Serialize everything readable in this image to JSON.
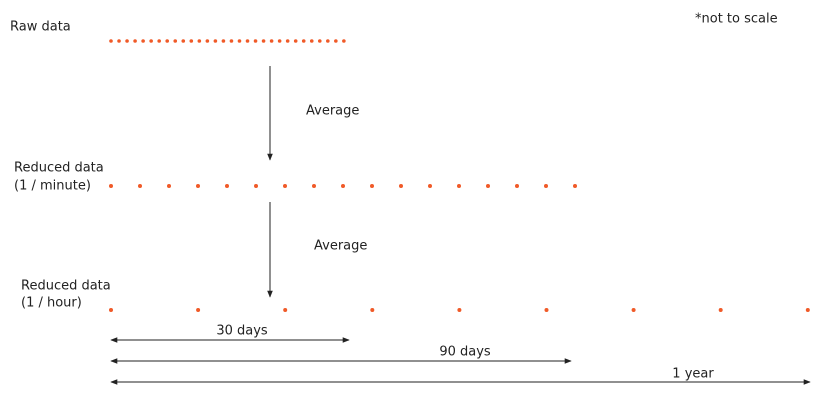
{
  "note": "*not to scale",
  "stages": [
    {
      "label_lines": [
        "Raw data"
      ]
    },
    {
      "label_lines": [
        "Reduced data",
        "(1 / minute)"
      ]
    },
    {
      "label_lines": [
        "Reduced data",
        "(1 / hour)"
      ]
    }
  ],
  "steps": [
    {
      "label": "Average"
    },
    {
      "label": "Average"
    }
  ],
  "spans": [
    {
      "label": "30 days"
    },
    {
      "label": "90 days"
    },
    {
      "label": "1 year"
    }
  ]
}
